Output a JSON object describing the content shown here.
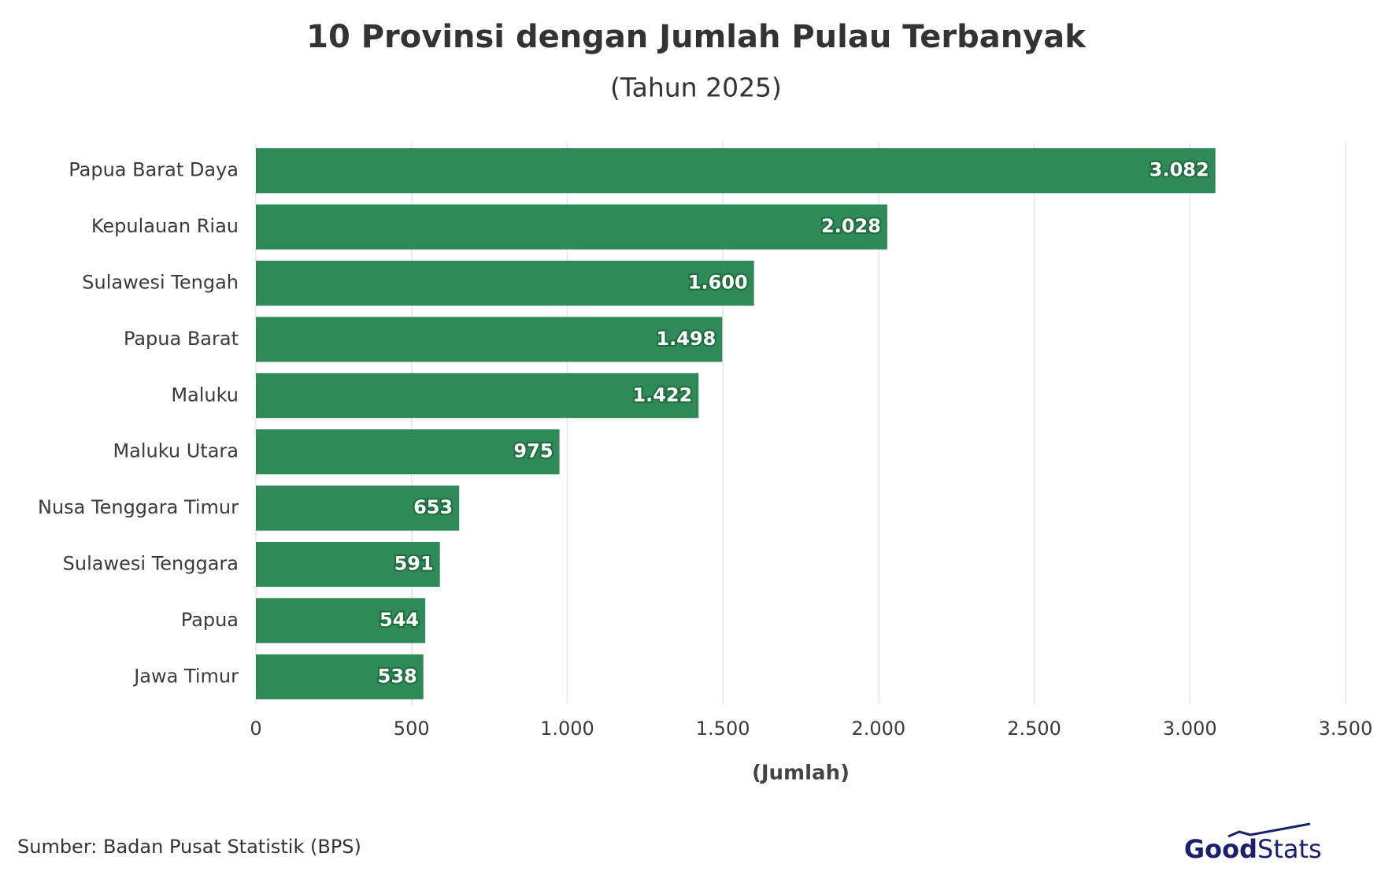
{
  "chart_data": {
    "type": "barh",
    "title": "10 Provinsi dengan Jumlah Pulau Terbanyak",
    "subtitle": "(Tahun 2025)",
    "x_label": "(Jumlah)",
    "categories": [
      "Papua Barat Daya",
      "Kepulauan Riau",
      "Sulawesi Tengah",
      "Papua Barat",
      "Maluku",
      "Maluku Utara",
      "Nusa Tenggara Timur",
      "Sulawesi Tenggara",
      "Papua",
      "Jawa Timur"
    ],
    "values": [
      3082,
      2028,
      1600,
      1498,
      1422,
      975,
      653,
      591,
      544,
      538
    ],
    "value_labels": [
      "3.082",
      "2.028",
      "1.600",
      "1.498",
      "1.422",
      "975",
      "653",
      "591",
      "544",
      "538"
    ],
    "color": "#2e8b57",
    "xlim": [
      0,
      3500
    ],
    "xticks": [
      0,
      500,
      {
        "value": 1000,
        "label": "1.000"
      },
      {
        "value": 1500,
        "label": "1.500"
      },
      {
        "value": 2000,
        "label": "2.000"
      },
      {
        "value": 2500,
        "label": "2.500"
      },
      {
        "value": 3000,
        "label": "3.000"
      },
      {
        "value": 3500,
        "label": "3.500"
      }
    ],
    "grid": true,
    "source": "Sumber: Badan Pusat Statistik (BPS)",
    "logo": {
      "good": "Good",
      "stats": "Stats"
    }
  }
}
